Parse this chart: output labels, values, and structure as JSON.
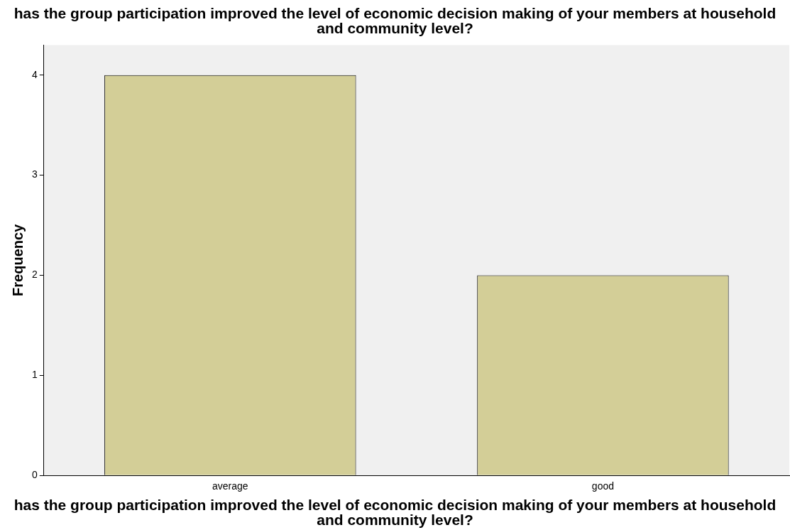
{
  "chart_data": {
    "type": "bar",
    "title": "has the group participation improved the level of economic decision making of your members at household and community level?",
    "xlabel": "has the group participation improved the level of economic decision making of your members at household and community level?",
    "ylabel": "Frequency",
    "categories": [
      "average",
      "good"
    ],
    "values": [
      4,
      2
    ],
    "color": "#d3ce97",
    "ylim": [
      0,
      4.3
    ],
    "yticks": [
      0,
      1,
      2,
      3,
      4
    ],
    "grid": false,
    "legend": false
  }
}
